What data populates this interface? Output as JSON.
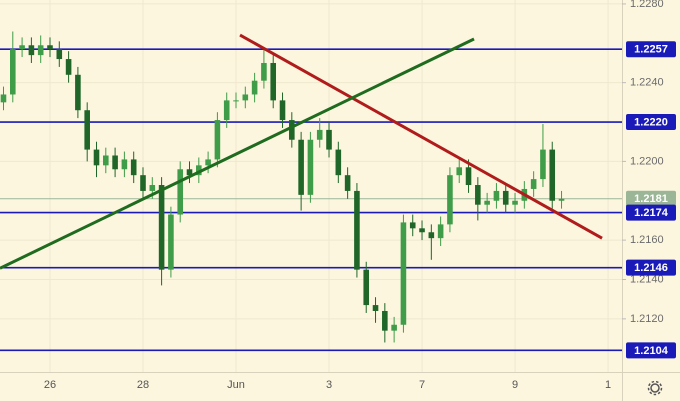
{
  "chart_data": {
    "type": "candlestick",
    "x": [
      -1,
      -0.8,
      -0.6,
      -0.4,
      -0.2,
      0,
      0.2,
      0.4,
      0.6,
      0.8,
      1,
      1.2,
      1.4,
      1.6,
      1.8,
      2,
      2.2,
      2.4,
      2.6,
      2.8,
      3,
      3.2,
      3.4,
      3.6,
      3.8,
      4,
      4.2,
      4.4,
      4.6,
      4.8,
      5,
      5.2,
      5.4,
      5.6,
      5.8,
      6,
      6.2,
      6.4,
      6.6,
      6.8,
      7,
      7.2,
      7.4,
      7.6,
      7.8,
      8,
      8.2,
      8.4,
      8.6,
      8.8,
      9,
      9.2,
      9.4,
      9.6,
      9.8,
      10,
      10.2,
      10.4,
      10.6,
      10.8,
      11
    ],
    "open": [
      1.223,
      1.2234,
      1.2257,
      1.2259,
      1.2254,
      1.2259,
      1.2257,
      1.2252,
      1.2244,
      1.2226,
      1.2206,
      1.2198,
      1.2203,
      1.2196,
      1.2201,
      1.2193,
      1.2185,
      1.2188,
      1.2145,
      1.2173,
      1.2196,
      1.2193,
      1.2198,
      1.2201,
      1.2221,
      1.2231,
      1.2231,
      1.2234,
      1.2241,
      1.225,
      1.2231,
      1.2221,
      1.2211,
      1.2183,
      1.2211,
      1.2216,
      1.2206,
      1.2193,
      1.2185,
      1.2145,
      1.2127,
      1.2124,
      1.2114,
      1.2117,
      1.2169,
      1.2166,
      1.2164,
      1.2161,
      1.2168,
      1.2193,
      1.2197,
      1.2188,
      1.2178,
      1.218,
      1.2185,
      1.2178,
      1.218,
      1.2186,
      1.2191,
      1.2206,
      1.218
    ],
    "high": [
      1.2238,
      1.2266,
      1.2263,
      1.2263,
      1.2264,
      1.2263,
      1.2261,
      1.2256,
      1.2248,
      1.223,
      1.221,
      1.2207,
      1.2207,
      1.2205,
      1.2205,
      1.2197,
      1.2192,
      1.2192,
      1.2177,
      1.22,
      1.22,
      1.2202,
      1.2205,
      1.2225,
      1.2235,
      1.2235,
      1.2238,
      1.2245,
      1.2258,
      1.2254,
      1.2235,
      1.2225,
      1.2215,
      1.2215,
      1.2222,
      1.222,
      1.221,
      1.2197,
      1.2189,
      1.2149,
      1.2131,
      1.2128,
      1.2121,
      1.2173,
      1.2173,
      1.217,
      1.2168,
      1.2172,
      1.2197,
      1.2201,
      1.2201,
      1.2192,
      1.2184,
      1.2189,
      1.2189,
      1.2184,
      1.219,
      1.2195,
      1.2219,
      1.221,
      1.2185
    ],
    "low": [
      1.2226,
      1.223,
      1.2253,
      1.225,
      1.225,
      1.2253,
      1.2248,
      1.224,
      1.2222,
      1.22,
      1.2192,
      1.2194,
      1.2192,
      1.2192,
      1.2189,
      1.2181,
      1.2181,
      1.2137,
      1.2141,
      1.2169,
      1.2189,
      1.2189,
      1.2194,
      1.2197,
      1.2217,
      1.2227,
      1.2227,
      1.223,
      1.2237,
      1.2227,
      1.2217,
      1.2207,
      1.2175,
      1.2179,
      1.2207,
      1.2202,
      1.2189,
      1.2181,
      1.2141,
      1.2123,
      1.2118,
      1.2108,
      1.2108,
      1.2113,
      1.2162,
      1.216,
      1.215,
      1.2157,
      1.2164,
      1.2189,
      1.2184,
      1.217,
      1.2174,
      1.2176,
      1.2174,
      1.2174,
      1.2176,
      1.2182,
      1.2187,
      1.2176,
      1.2176
    ],
    "close": [
      1.2234,
      1.2257,
      1.2259,
      1.2254,
      1.2259,
      1.2257,
      1.2252,
      1.2244,
      1.2226,
      1.2206,
      1.2198,
      1.2203,
      1.2196,
      1.2201,
      1.2193,
      1.2185,
      1.2188,
      1.2145,
      1.2173,
      1.2196,
      1.2193,
      1.2198,
      1.2201,
      1.2221,
      1.2231,
      1.2231,
      1.2234,
      1.2241,
      1.225,
      1.2231,
      1.2221,
      1.2211,
      1.2183,
      1.2211,
      1.2216,
      1.2206,
      1.2193,
      1.2185,
      1.2145,
      1.2127,
      1.2124,
      1.2114,
      1.2117,
      1.2169,
      1.2166,
      1.2164,
      1.2161,
      1.2168,
      1.2193,
      1.2197,
      1.2188,
      1.2178,
      1.218,
      1.2185,
      1.2178,
      1.218,
      1.2186,
      1.2191,
      1.2206,
      1.218,
      1.2181
    ],
    "up_color": "#3f9c48",
    "down_color": "#1f6628",
    "xlim": [
      -1.075,
      12.3
    ],
    "ylim": [
      1.2093,
      1.2282
    ],
    "xticks": [
      {
        "value": 0,
        "label": "26"
      },
      {
        "value": 2,
        "label": "28"
      },
      {
        "value": 4,
        "label": "Jun"
      },
      {
        "value": 6,
        "label": "3"
      },
      {
        "value": 8,
        "label": "7"
      },
      {
        "value": 10,
        "label": "9"
      },
      {
        "value": 12,
        "label": "1"
      }
    ],
    "yticks": [
      {
        "value": 1.228,
        "label": "1.2280"
      },
      {
        "value": 1.224,
        "label": "1.2240"
      },
      {
        "value": 1.22,
        "label": "1.2200"
      },
      {
        "value": 1.216,
        "label": "1.2160"
      },
      {
        "value": 1.214,
        "label": "1.2140"
      },
      {
        "value": 1.212,
        "label": "1.2120"
      }
    ],
    "grid": true,
    "levels": [
      {
        "value": 1.2257,
        "label": "1.2257"
      },
      {
        "value": 1.222,
        "label": "1.2220"
      },
      {
        "value": 1.2174,
        "label": "1.2174"
      },
      {
        "value": 1.2146,
        "label": "1.2146"
      },
      {
        "value": 1.2104,
        "label": "1.2104"
      }
    ],
    "level_color": "#1a1ab8",
    "last_price": {
      "value": 1.2181,
      "label": "1.2181"
    },
    "last_price_color": "#9bb597",
    "trendlines": [
      {
        "color": "#b01c1c",
        "x": [
          4.086,
          11.871
        ],
        "y": [
          1.22642,
          1.2161
        ]
      },
      {
        "color": "#1f6b1f",
        "x": [
          -1.075,
          9.118
        ],
        "y": [
          1.21457,
          1.22622
        ]
      }
    ]
  }
}
